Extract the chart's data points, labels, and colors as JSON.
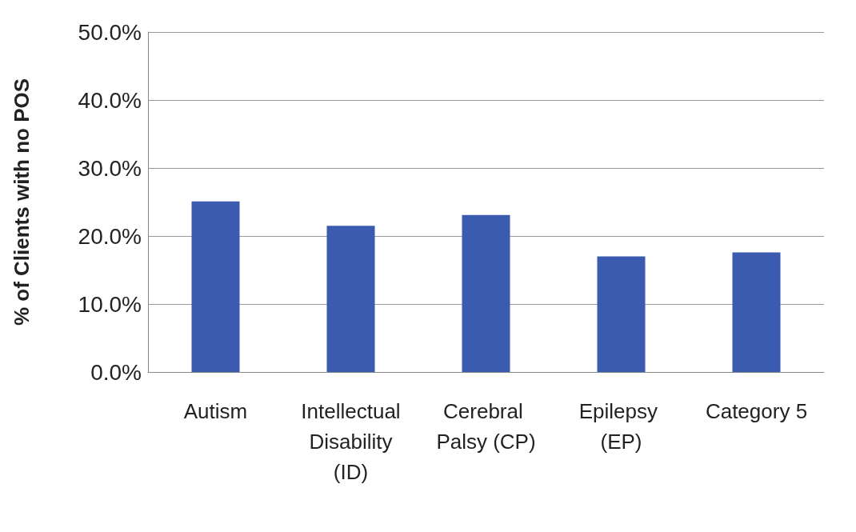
{
  "chart_data": {
    "type": "bar",
    "ylabel": "% of Clients with no POS",
    "categories": [
      "Autism",
      "Intellectual Disability (ID)",
      "Cerebral Palsy (CP)",
      "Epilepsy (EP)",
      "Category 5"
    ],
    "values": [
      25.1,
      21.5,
      23.1,
      17.0,
      17.6
    ],
    "color": "#3a5bb0",
    "ylim": [
      0,
      50
    ],
    "yticks": [
      {
        "value": 0,
        "label": "0.0%"
      },
      {
        "value": 10,
        "label": "10.0%"
      },
      {
        "value": 20,
        "label": "20.0%"
      },
      {
        "value": 30,
        "label": "30.0%"
      },
      {
        "value": 40,
        "label": "40.0%"
      },
      {
        "value": 50,
        "label": "50.0%"
      }
    ],
    "grid": true
  }
}
